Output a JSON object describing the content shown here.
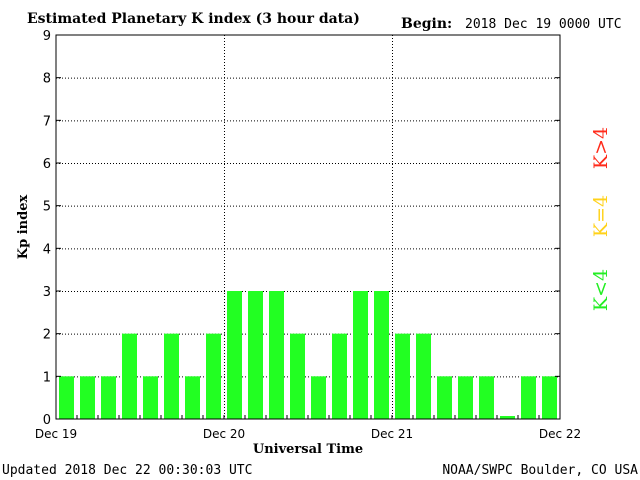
{
  "chart_data": {
    "type": "bar",
    "title": "Estimated Planetary K index (3 hour data)",
    "begin_label": "Begin:",
    "begin_value": "2018 Dec 19 0000 UTC",
    "xlabel": "Universal Time",
    "ylabel": "Kp index",
    "ylim": [
      0,
      9
    ],
    "yticks": [
      "0",
      "1",
      "2",
      "3",
      "4",
      "5",
      "6",
      "7",
      "8",
      "9"
    ],
    "xtick_labels": [
      "Dec 19",
      "Dec 20",
      "Dec 21",
      "Dec 22"
    ],
    "values": [
      1,
      1,
      1,
      2,
      1,
      2,
      1,
      2,
      3,
      3,
      3,
      2,
      1,
      2,
      3,
      3,
      2,
      2,
      1,
      1,
      1,
      0.07,
      1,
      1
    ],
    "bar_color": "#22ff22",
    "grid": true,
    "legend": [
      {
        "label": "K<4",
        "color": "#22ee22"
      },
      {
        "label": "K=4",
        "color": "#ffd21a"
      },
      {
        "label": "K>4",
        "color": "#ff2a1a"
      }
    ]
  },
  "footer": {
    "updated": "Updated 2018 Dec 22 00:30:03 UTC",
    "source": "NOAA/SWPC Boulder, CO USA"
  }
}
